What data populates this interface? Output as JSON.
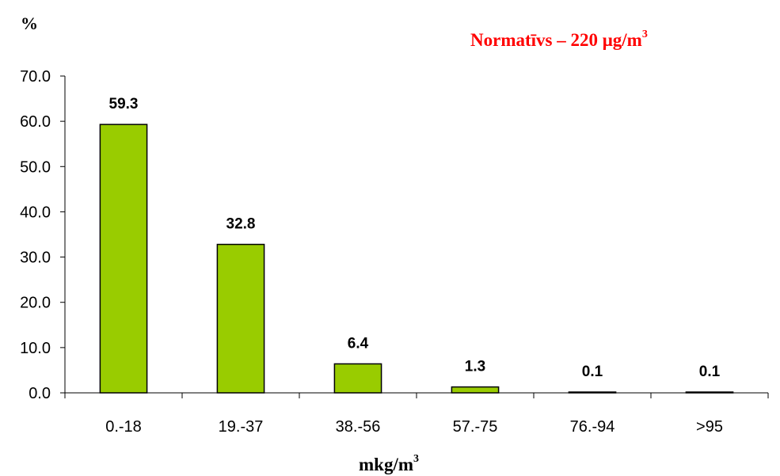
{
  "chart_data": {
    "type": "bar",
    "ylabel": "%",
    "xlabel": "mkg/m",
    "xlabel_sup": "3",
    "note": {
      "text": "Normatīvs – 220 μg/m",
      "sup": "3",
      "color": "#ff0000"
    },
    "categories": [
      "0.-18",
      "19.-37",
      "38.-56",
      "57.-75",
      "76.-94",
      ">95"
    ],
    "values": [
      59.3,
      32.8,
      6.4,
      1.3,
      0.1,
      0.1
    ],
    "value_labels": [
      "59.3",
      "32.8",
      "6.4",
      "1.3",
      "0.1",
      "0.1"
    ],
    "ylim": [
      0,
      70
    ],
    "yticks": [
      "0.0",
      "10.0",
      "20.0",
      "30.0",
      "40.0",
      "50.0",
      "60.0",
      "70.0"
    ],
    "bar_color": "#99cc00",
    "grid": false,
    "legend": "none"
  }
}
